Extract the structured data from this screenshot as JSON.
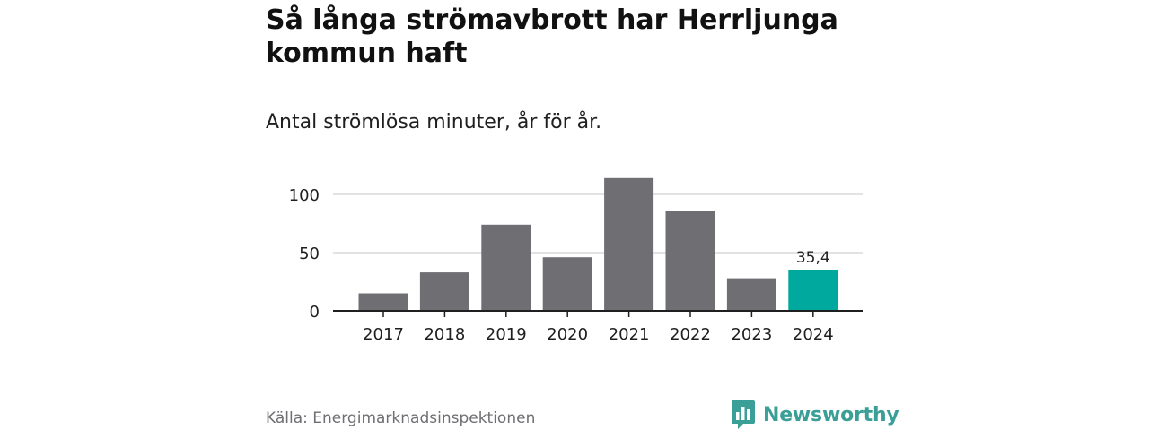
{
  "header": {
    "title": "Så långa strömavbrott har Herrljunga kommun haft",
    "subtitle": "Antal strömlösa minuter, år för år."
  },
  "footer": {
    "source": "Källa: Energimarknadsinspektionen",
    "brand": "Newsworthy"
  },
  "colors": {
    "bar": "#6f6e73",
    "highlight": "#00a99d",
    "grid": "#d9d9d9",
    "axis": "#1f1f1f",
    "brand": "#3a9f96"
  },
  "chart_data": {
    "type": "bar",
    "categories": [
      "2017",
      "2018",
      "2019",
      "2020",
      "2021",
      "2022",
      "2023",
      "2024"
    ],
    "values": [
      15,
      33,
      74,
      46,
      114,
      86,
      28,
      35.4
    ],
    "yticks": [
      0,
      50,
      100
    ],
    "ylim": [
      0,
      120
    ],
    "highlight_index": 7,
    "value_labels": [
      {
        "index": 7,
        "text": "35,4"
      }
    ],
    "grid": true,
    "legend": false
  }
}
